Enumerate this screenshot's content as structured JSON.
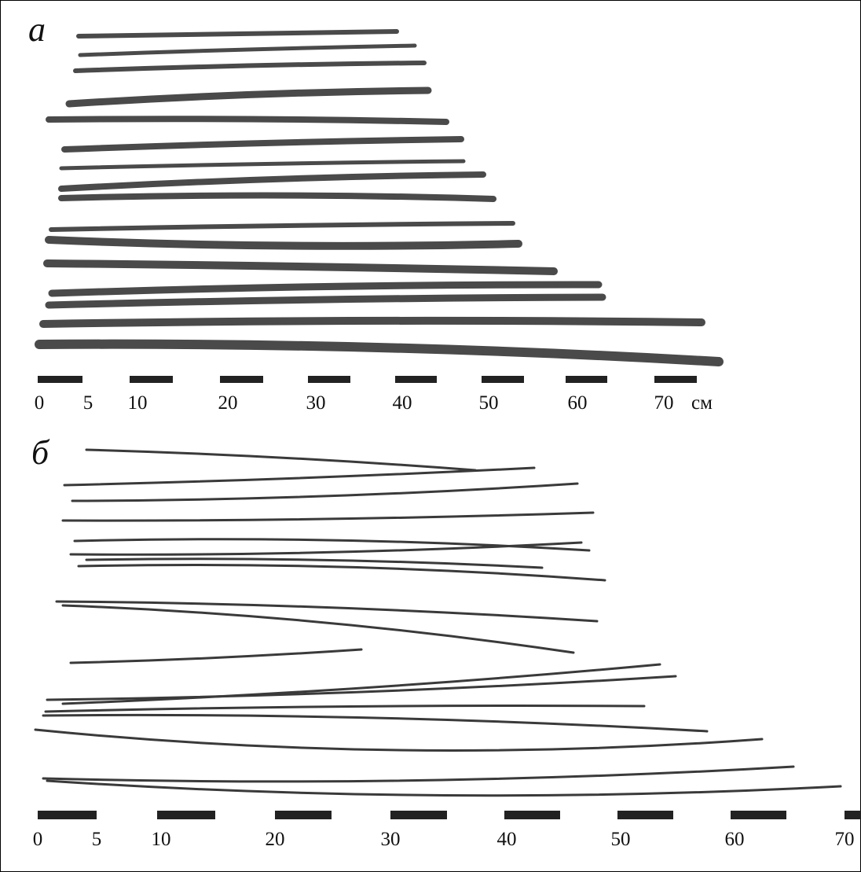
{
  "panels": [
    {
      "label": "а",
      "scale": [
        "0",
        "5",
        "10",
        "20",
        "30",
        "40",
        "50",
        "60",
        "70"
      ],
      "unit": "см"
    },
    {
      "label": "б",
      "scale": [
        "0",
        "5",
        "10",
        "20",
        "30",
        "40",
        "50",
        "60",
        "70"
      ]
    }
  ]
}
